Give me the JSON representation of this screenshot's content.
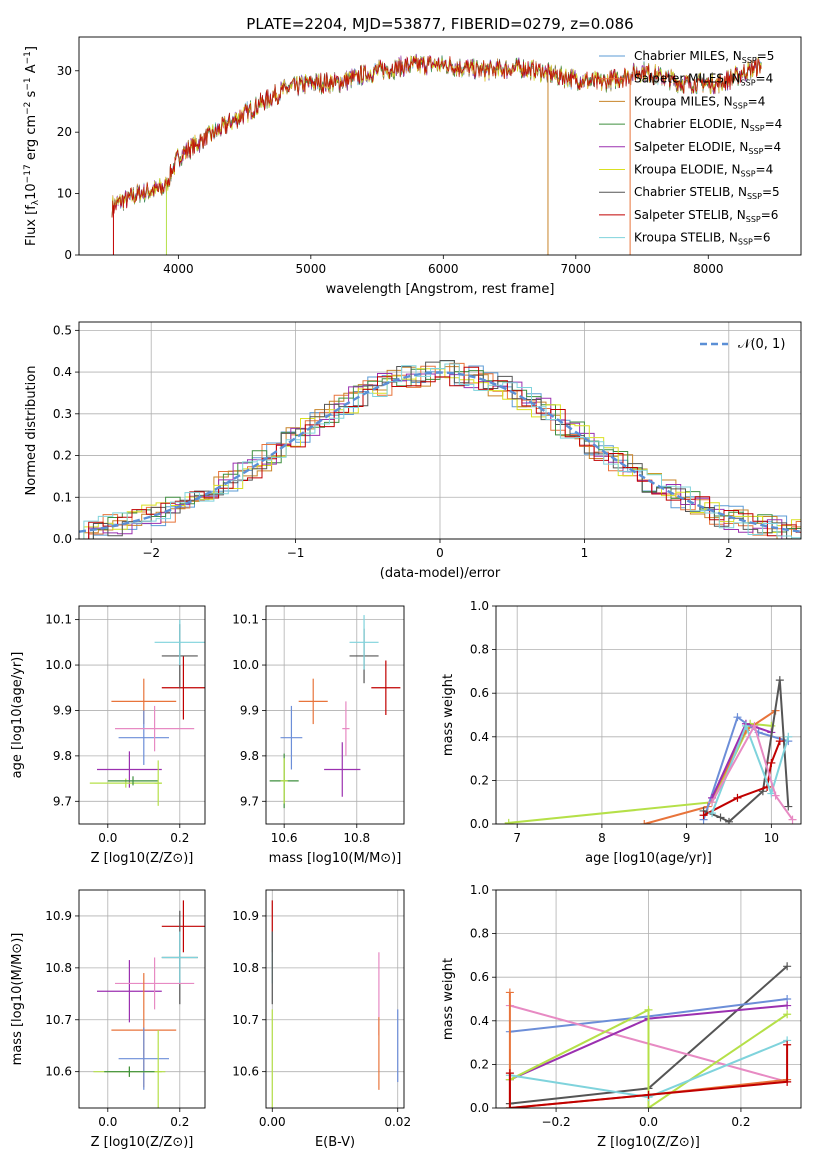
{
  "title": "PLATE=2204, MJD=53877, FIBERID=0279, z=0.086",
  "colors": {
    "chabrier_miles": "#5b9bd5",
    "salpeter_miles": "#e8743b",
    "kroupa_miles": "#c8842a",
    "chabrier_elodie": "#3f8f3f",
    "salpeter_elodie": "#9b30b0",
    "kroupa_elodie": "#d9e021",
    "chabrier_stelib": "#555555",
    "salpeter_stelib": "#c00000",
    "kroupa_stelib": "#7fd3dc",
    "miles_blue": "#6c8ed8",
    "pink": "#e78ac3",
    "lime": "#b5e048",
    "dark": "#4d4d4d",
    "gaussian": "#5b8fd6"
  },
  "chart_data": [
    {
      "id": "spectrum",
      "type": "line",
      "xlabel": "wavelength [Angstrom, rest frame]",
      "ylabel": "Flux [f_λ10^-17 erg cm^-2 s^-1 A^-1]",
      "xlim": [
        3250,
        8700
      ],
      "ylim": [
        0,
        35.5
      ],
      "xticks": [
        "4000",
        "5000",
        "6000",
        "7000",
        "8000"
      ],
      "yticks": [
        "0",
        "10",
        "20",
        "30"
      ],
      "legend_position": "upper right",
      "legend": [
        "Chabrier MILES, N_SSP=5",
        "Salpeter MILES, N_SSP=4",
        "Kroupa MILES, N_SSP=4",
        "Chabrier ELODIE, N_SSP=4",
        "Salpeter ELODIE, N_SSP=4",
        "Kroupa ELODIE, N_SSP=4",
        "Chabrier STELIB, N_SSP=5",
        "Salpeter STELIB, N_SSP=6",
        "Kroupa STELIB, N_SSP=6"
      ],
      "continuum": [
        [
          3500,
          8
        ],
        [
          3700,
          10
        ],
        [
          3900,
          11
        ],
        [
          4000,
          16
        ],
        [
          4200,
          19
        ],
        [
          4500,
          23
        ],
        [
          4800,
          27
        ],
        [
          5000,
          28
        ],
        [
          5200,
          28
        ],
        [
          5500,
          30
        ],
        [
          5800,
          31
        ],
        [
          6000,
          31
        ],
        [
          6300,
          30
        ],
        [
          6600,
          30.5
        ],
        [
          6900,
          29
        ],
        [
          7200,
          28
        ],
        [
          7500,
          30
        ],
        [
          7800,
          28
        ],
        [
          8100,
          28
        ],
        [
          8400,
          31
        ]
      ]
    },
    {
      "id": "residuals",
      "type": "step",
      "xlabel": "(data-model)/error",
      "ylabel": "Normed distribution",
      "xlim": [
        -2.5,
        2.5
      ],
      "ylim": [
        0,
        0.52
      ],
      "xticks": [
        "−2",
        "−1",
        "0",
        "1",
        "2"
      ],
      "yticks": [
        "0.0",
        "0.1",
        "0.2",
        "0.3",
        "0.4",
        "0.5"
      ],
      "legend": [
        "𝒩(0, 1)"
      ],
      "legend_position": "upper right",
      "bin_width": 0.1
    },
    {
      "id": "age_vs_Z",
      "type": "errorbar",
      "xlabel": "Z [log10(Z/Z⊙)]",
      "ylabel": "age  [log10(age/yr)]",
      "xlim": [
        -0.08,
        0.27
      ],
      "ylim": [
        9.65,
        10.13
      ],
      "xticks": [
        "0.0",
        "0.2"
      ],
      "yticks": [
        "9.7",
        "9.8",
        "9.9",
        "10.0",
        "10.1"
      ],
      "points": [
        {
          "c": "salpeter_miles",
          "x": 0.1,
          "y": 9.92,
          "xe": 0.09,
          "ye": 0.05
        },
        {
          "c": "miles_blue",
          "x": 0.1,
          "y": 9.84,
          "xe": 0.07,
          "ye": 0.06
        },
        {
          "c": "salpeter_elodie",
          "x": 0.06,
          "y": 9.77,
          "xe": 0.09,
          "ye": 0.04
        },
        {
          "c": "lime",
          "x": 0.05,
          "y": 9.74,
          "xe": 0.1,
          "ye": 0.01
        },
        {
          "c": "chabrier_elodie",
          "x": 0.07,
          "y": 9.745,
          "xe": 0.07,
          "ye": 0.01
        },
        {
          "c": "pink",
          "x": 0.13,
          "y": 9.86,
          "xe": 0.11,
          "ye": 0.05
        },
        {
          "c": "salpeter_stelib",
          "x": 0.21,
          "y": 9.95,
          "xe": 0.06,
          "ye": 0.07
        },
        {
          "c": "chabrier_stelib",
          "x": 0.2,
          "y": 10.02,
          "xe": 0.05,
          "ye": 0.07
        },
        {
          "c": "kroupa_stelib",
          "x": 0.2,
          "y": 10.05,
          "xe": 0.07,
          "ye": 0.05
        },
        {
          "c": "lime",
          "x": 0.14,
          "y": 9.74,
          "xe": 0.01,
          "ye": 0.05
        }
      ]
    },
    {
      "id": "age_vs_mass",
      "type": "errorbar",
      "xlabel": "mass [log10(M/M⊙)]",
      "ylabel": "",
      "xlim": [
        10.55,
        10.93
      ],
      "ylim": [
        9.65,
        10.13
      ],
      "xticks": [
        "10.6",
        "10.8"
      ],
      "yticks": [
        "9.7",
        "9.8",
        "9.9",
        "10.0",
        "10.1"
      ],
      "points": [
        {
          "c": "salpeter_miles",
          "x": 10.68,
          "y": 9.92,
          "xe": 0.04,
          "ye": 0.05
        },
        {
          "c": "miles_blue",
          "x": 10.62,
          "y": 9.84,
          "xe": 0.03,
          "ye": 0.07
        },
        {
          "c": "chabrier_elodie",
          "x": 10.6,
          "y": 9.745,
          "xe": 0.04,
          "ye": 0.06
        },
        {
          "c": "lime",
          "x": 10.6,
          "y": 9.745,
          "xe": 0.01,
          "ye": 0.05
        },
        {
          "c": "salpeter_elodie",
          "x": 10.76,
          "y": 9.77,
          "xe": 0.05,
          "ye": 0.06
        },
        {
          "c": "pink",
          "x": 10.77,
          "y": 9.86,
          "xe": 0.01,
          "ye": 0.06
        },
        {
          "c": "salpeter_stelib",
          "x": 10.88,
          "y": 9.95,
          "xe": 0.04,
          "ye": 0.06
        },
        {
          "c": "chabrier_stelib",
          "x": 10.82,
          "y": 10.02,
          "xe": 0.04,
          "ye": 0.06
        },
        {
          "c": "kroupa_stelib",
          "x": 10.82,
          "y": 10.05,
          "xe": 0.04,
          "ye": 0.06
        }
      ]
    },
    {
      "id": "weight_vs_age",
      "type": "line",
      "xlabel": "age  [log10(age/yr)]",
      "ylabel": "mass weight",
      "xlim": [
        6.75,
        10.35
      ],
      "ylim": [
        0,
        1.0
      ],
      "xticks": [
        "7",
        "8",
        "9",
        "10"
      ],
      "yticks": [
        "0.0",
        "0.2",
        "0.4",
        "0.6",
        "0.8",
        "1.0"
      ],
      "series": [
        {
          "c": "lime",
          "pts": [
            [
              6.9,
              0.005
            ],
            [
              9.3,
              0.1
            ],
            [
              9.75,
              0.46
            ],
            [
              10.0,
              0.45
            ]
          ]
        },
        {
          "c": "salpeter_miles",
          "pts": [
            [
              8.5,
              0.0
            ],
            [
              9.25,
              0.08
            ],
            [
              9.7,
              0.43
            ],
            [
              10.05,
              0.52
            ]
          ]
        },
        {
          "c": "miles_blue",
          "pts": [
            [
              9.2,
              0.02
            ],
            [
              9.6,
              0.49
            ],
            [
              9.85,
              0.42
            ],
            [
              10.2,
              0.38
            ]
          ]
        },
        {
          "c": "salpeter_elodie",
          "pts": [
            [
              9.3,
              0.12
            ],
            [
              9.7,
              0.46
            ],
            [
              10.0,
              0.42
            ]
          ]
        },
        {
          "c": "chabrier_stelib",
          "pts": [
            [
              9.2,
              0.06
            ],
            [
              9.4,
              0.03
            ],
            [
              9.5,
              0.01
            ],
            [
              9.9,
              0.15
            ],
            [
              10.1,
              0.66
            ],
            [
              10.2,
              0.08
            ]
          ]
        },
        {
          "c": "salpeter_stelib",
          "pts": [
            [
              9.2,
              0.04
            ],
            [
              9.6,
              0.12
            ],
            [
              9.95,
              0.17
            ],
            [
              10.0,
              0.28
            ],
            [
              10.1,
              0.38
            ]
          ]
        },
        {
          "c": "kroupa_stelib",
          "pts": [
            [
              9.3,
              0.05
            ],
            [
              9.7,
              0.45
            ],
            [
              10.0,
              0.14
            ],
            [
              10.2,
              0.4
            ]
          ]
        },
        {
          "c": "pink",
          "pts": [
            [
              9.3,
              0.1
            ],
            [
              9.8,
              0.45
            ],
            [
              10.05,
              0.13
            ],
            [
              10.25,
              0.02
            ]
          ]
        }
      ]
    },
    {
      "id": "mass_vs_Z",
      "type": "errorbar",
      "xlabel": "Z [log10(Z/Z⊙)]",
      "ylabel": "mass [log10(M/M⊙)]",
      "xlim": [
        -0.08,
        0.27
      ],
      "ylim": [
        10.53,
        10.95
      ],
      "xticks": [
        "0.0",
        "0.2"
      ],
      "yticks": [
        "10.6",
        "10.7",
        "10.8",
        "10.9"
      ],
      "points": [
        {
          "c": "salpeter_stelib",
          "x": 0.21,
          "y": 10.88,
          "xe": 0.06,
          "ye": 0.05
        },
        {
          "c": "salpeter_elodie",
          "x": 0.06,
          "y": 10.755,
          "xe": 0.09,
          "ye": 0.06
        },
        {
          "c": "chabrier_stelib",
          "x": 0.2,
          "y": 10.82,
          "xe": 0.05,
          "ye": 0.09
        },
        {
          "c": "kroupa_stelib",
          "x": 0.2,
          "y": 10.82,
          "xe": 0.05,
          "ye": 0.05
        },
        {
          "c": "pink",
          "x": 0.13,
          "y": 10.77,
          "xe": 0.11,
          "ye": 0.05
        },
        {
          "c": "salpeter_miles",
          "x": 0.1,
          "y": 10.68,
          "xe": 0.09,
          "ye": 0.11
        },
        {
          "c": "miles_blue",
          "x": 0.1,
          "y": 10.625,
          "xe": 0.07,
          "ye": 0.06
        },
        {
          "c": "lime",
          "x": 0.06,
          "y": 10.6,
          "xe": 0.1,
          "ye": 0.01
        },
        {
          "c": "chabrier_elodie",
          "x": 0.06,
          "y": 10.6,
          "xe": 0.07,
          "ye": 0.01
        },
        {
          "c": "lime",
          "x": 0.14,
          "y": 10.6,
          "xe": 0.01,
          "ye": 0.08
        }
      ]
    },
    {
      "id": "mass_vs_ebv",
      "type": "errorbar",
      "xlabel": "E(B-V)",
      "ylabel": "",
      "xlim": [
        -0.001,
        0.021
      ],
      "ylim": [
        10.53,
        10.95
      ],
      "xticks": [
        "0.00",
        "0.02"
      ],
      "yticks": [
        "10.6",
        "10.7",
        "10.8",
        "10.9"
      ],
      "points": [
        {
          "c": "salpeter_stelib",
          "x": 0.0,
          "y": 10.88,
          "xe": 0,
          "ye": 0.05
        },
        {
          "c": "kroupa_stelib",
          "x": 0.0,
          "y": 10.82,
          "xe": 0,
          "ye": 0.05
        },
        {
          "c": "chabrier_stelib",
          "x": 0.0,
          "y": 10.8,
          "xe": 0,
          "ye": 0.07
        },
        {
          "c": "lime",
          "x": 0.0,
          "y": 10.62,
          "xe": 0,
          "ye": 0.1
        },
        {
          "c": "pink",
          "x": 0.017,
          "y": 10.75,
          "xe": 0,
          "ye": 0.08
        },
        {
          "c": "salpeter_miles",
          "x": 0.017,
          "y": 10.635,
          "xe": 0,
          "ye": 0.07
        },
        {
          "c": "miles_blue",
          "x": 0.02,
          "y": 10.65,
          "xe": 0,
          "ye": 0.07
        }
      ]
    },
    {
      "id": "weight_vs_Z",
      "type": "line",
      "xlabel": "Z [log10(Z/Z⊙)]",
      "ylabel": "mass weight",
      "xlim": [
        -0.33,
        0.33
      ],
      "ylim": [
        0,
        1.0
      ],
      "xticks": [
        "−0.2",
        "0.0",
        "0.2"
      ],
      "yticks": [
        "0.0",
        "0.2",
        "0.4",
        "0.6",
        "0.8",
        "1.0"
      ],
      "series": [
        {
          "c": "chabrier_stelib",
          "pts": [
            [
              -0.3,
              0.02
            ],
            [
              0.0,
              0.09
            ],
            [
              0.3,
              0.65
            ]
          ]
        },
        {
          "c": "miles_blue",
          "pts": [
            [
              -0.3,
              0.35
            ],
            [
              0.0,
              0.42
            ],
            [
              0.3,
              0.5
            ]
          ]
        },
        {
          "c": "pink",
          "pts": [
            [
              -0.3,
              0.47
            ],
            [
              0.3,
              0.12
            ]
          ]
        },
        {
          "c": "salpeter_elodie",
          "pts": [
            [
              -0.3,
              0.13
            ],
            [
              0.0,
              0.41
            ],
            [
              0.3,
              0.47
            ]
          ]
        },
        {
          "c": "lime",
          "pts": [
            [
              -0.3,
              0.13
            ],
            [
              0.0,
              0.45
            ],
            [
              0.0,
              0.0
            ],
            [
              0.3,
              0.43
            ]
          ]
        },
        {
          "c": "kroupa_stelib",
          "pts": [
            [
              -0.3,
              0.15
            ],
            [
              0.0,
              0.05
            ],
            [
              0.3,
              0.31
            ]
          ]
        },
        {
          "c": "salpeter_miles",
          "pts": [
            [
              -0.3,
              0.53
            ],
            [
              -0.3,
              0.0
            ],
            [
              0.0,
              0.06
            ],
            [
              0.3,
              0.13
            ]
          ]
        },
        {
          "c": "salpeter_stelib",
          "pts": [
            [
              -0.3,
              0.16
            ],
            [
              -0.3,
              0.0
            ],
            [
              0.0,
              0.06
            ],
            [
              0.3,
              0.12
            ],
            [
              0.3,
              0.29
            ]
          ]
        }
      ]
    }
  ]
}
